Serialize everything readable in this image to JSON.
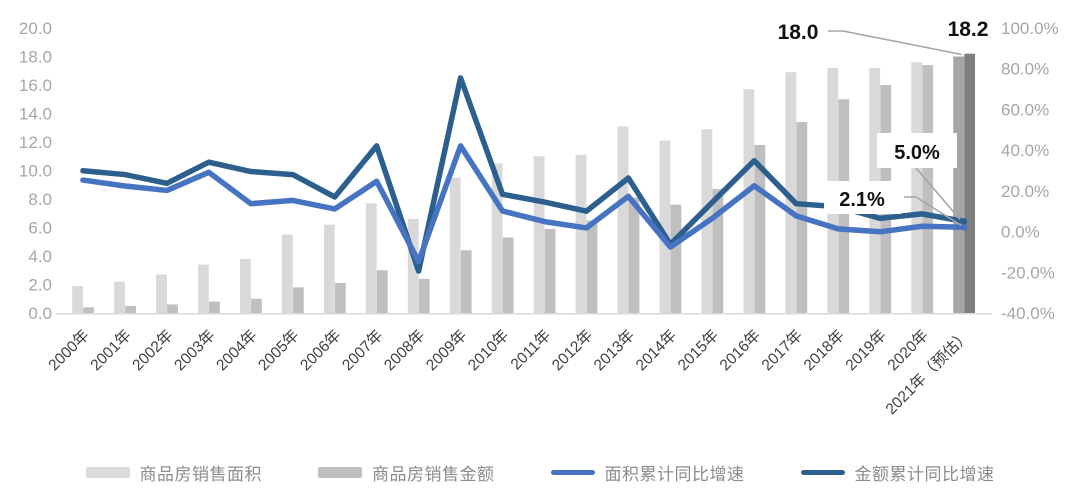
{
  "colors": {
    "bar_area": "#d9d9d9",
    "bar_amount": "#bfbfbf",
    "bar_area_highlight": "#a6a6a6",
    "bar_amount_highlight": "#7f7f7f",
    "line_area": "#4673c2",
    "line_amount": "#2d5f8e",
    "axis_text": "#a6a6a6",
    "x_axis_text": "#404040",
    "annotation_text": "#111111",
    "leader_line": "#a6a6a6",
    "axis_line": "#d9d9d9",
    "legend_text": "#8c8c8c",
    "background": "#ffffff"
  },
  "chart_data": {
    "type": "combo-bar-line",
    "title": "",
    "categories": [
      "2000年",
      "2001年",
      "2002年",
      "2003年",
      "2004年",
      "2005年",
      "2006年",
      "2007年",
      "2008年",
      "2009年",
      "2010年",
      "2011年",
      "2012年",
      "2013年",
      "2014年",
      "2015年",
      "2016年",
      "2017年",
      "2018年",
      "2019年",
      "2020年",
      "2021年（预估）"
    ],
    "series": [
      {
        "name": "商品房销售面积",
        "type": "bar",
        "axis": "left",
        "values": [
          1.9,
          2.2,
          2.7,
          3.4,
          3.8,
          5.5,
          6.2,
          7.7,
          6.6,
          9.5,
          10.5,
          11.0,
          11.1,
          13.1,
          12.1,
          12.9,
          15.7,
          16.9,
          17.2,
          17.2,
          17.6,
          18.0
        ]
      },
      {
        "name": "商品房销售金额",
        "type": "bar",
        "axis": "left",
        "values": [
          0.4,
          0.5,
          0.6,
          0.8,
          1.0,
          1.8,
          2.1,
          3.0,
          2.4,
          4.4,
          5.3,
          5.9,
          6.5,
          8.1,
          7.6,
          8.7,
          11.8,
          13.4,
          15.0,
          16.0,
          17.4,
          18.2
        ]
      },
      {
        "name": "面积累计同比增速",
        "type": "line",
        "axis": "right",
        "unit": "%",
        "values": [
          25.3,
          22.4,
          20.2,
          29.1,
          13.7,
          15.3,
          11.1,
          24.7,
          -14.7,
          42.1,
          10.1,
          4.9,
          1.8,
          17.3,
          -7.6,
          6.5,
          22.5,
          7.7,
          1.3,
          -0.1,
          2.6,
          2.1
        ]
      },
      {
        "name": "金额累计同比增速",
        "type": "line",
        "axis": "right",
        "unit": "%",
        "values": [
          29.9,
          28.0,
          23.7,
          34.1,
          29.5,
          28.0,
          17.0,
          42.1,
          -19.4,
          75.5,
          18.3,
          14.5,
          10.0,
          26.3,
          -6.3,
          14.4,
          34.8,
          13.7,
          12.2,
          6.5,
          8.7,
          5.0
        ]
      }
    ],
    "left_axis": {
      "min": 0,
      "max": 20,
      "step": 2,
      "labels": [
        "20.0",
        "18.0",
        "16.0",
        "14.0",
        "12.0",
        "10.0",
        "8.0",
        "6.0",
        "4.0",
        "2.0",
        "0.0"
      ]
    },
    "right_axis": {
      "min": -40,
      "max": 100,
      "step": 20,
      "labels": [
        "100.0%",
        "80.0%",
        "60.0%",
        "40.0%",
        "20.0%",
        "0.0%",
        "-20.0%",
        "-40.0%"
      ]
    },
    "grid": "off",
    "legend_position": "bottom",
    "annotations": [
      {
        "text": "18.0",
        "target": "area-bar-2021",
        "style": "plain-bold"
      },
      {
        "text": "18.2",
        "target": "amount-bar-2021",
        "style": "plain-bold"
      },
      {
        "text": "5.0%",
        "target": "amount-line-2021",
        "style": "boxed-bold"
      },
      {
        "text": "2.1%",
        "target": "area-line-2021",
        "style": "boxed-bold"
      }
    ]
  }
}
